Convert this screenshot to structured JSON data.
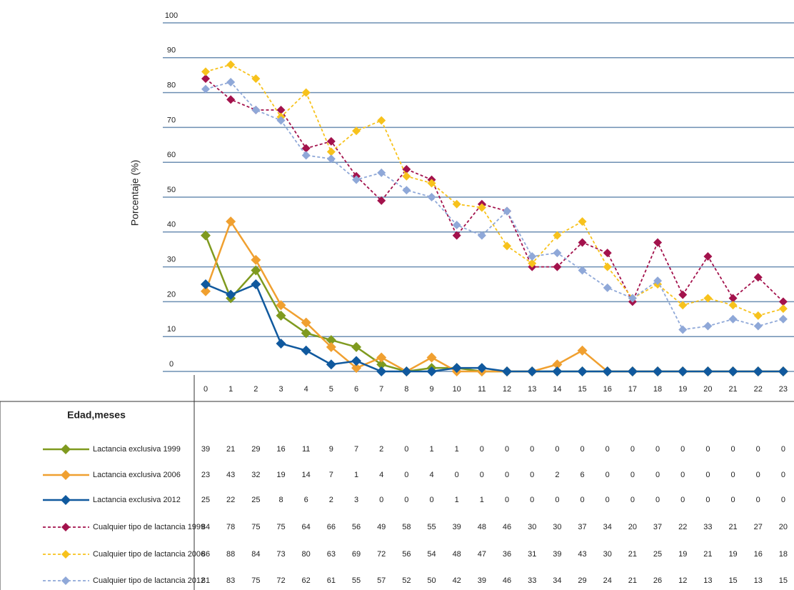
{
  "chart_data": {
    "type": "line",
    "y_label": "Porcentaje (%)",
    "table_header": "Edad,meses",
    "categories": [
      "0",
      "1",
      "2",
      "3",
      "4",
      "5",
      "6",
      "7",
      "8",
      "9",
      "10",
      "11",
      "12",
      "13",
      "14",
      "15",
      "16",
      "17",
      "18",
      "19",
      "20",
      "21",
      "22",
      "23"
    ],
    "ylim": [
      0,
      100
    ],
    "yticks": [
      0,
      10,
      20,
      30,
      40,
      50,
      60,
      70,
      80,
      90,
      100
    ],
    "grid": true,
    "series": [
      {
        "name": "Lactancia exclusiva  1999",
        "color": "#7f9a1f",
        "dashed": false,
        "values": [
          39,
          21,
          29,
          16,
          11,
          9,
          7,
          2,
          0,
          1,
          1,
          0,
          0,
          0,
          0,
          0,
          0,
          0,
          0,
          0,
          0,
          0,
          0,
          0
        ]
      },
      {
        "name": "Lactancia exclusiva  2006",
        "color": "#f0a030",
        "dashed": false,
        "values": [
          23,
          43,
          32,
          19,
          14,
          7,
          1,
          4,
          0,
          4,
          0,
          0,
          0,
          0,
          2,
          6,
          0,
          0,
          0,
          0,
          0,
          0,
          0,
          0
        ]
      },
      {
        "name": "Lactancia exclusiva  2012",
        "color": "#10599e",
        "dashed": false,
        "values": [
          25,
          22,
          25,
          8,
          6,
          2,
          3,
          0,
          0,
          0,
          1,
          1,
          0,
          0,
          0,
          0,
          0,
          0,
          0,
          0,
          0,
          0,
          0,
          0
        ]
      },
      {
        "name": "Cualquier tipo de lactancia 1999",
        "color": "#a3124c",
        "dashed": true,
        "values": [
          84,
          78,
          75,
          75,
          64,
          66,
          56,
          49,
          58,
          55,
          39,
          48,
          46,
          30,
          30,
          37,
          34,
          20,
          37,
          22,
          33,
          21,
          27,
          20
        ]
      },
      {
        "name": "Cualquier tipo de lactancia 2006",
        "color": "#f7c21c",
        "dashed": true,
        "values": [
          86,
          88,
          84,
          73,
          80,
          63,
          69,
          72,
          56,
          54,
          48,
          47,
          36,
          31,
          39,
          43,
          30,
          21,
          25,
          19,
          21,
          19,
          16,
          18
        ]
      },
      {
        "name": "Cualquier tipo de lactancia 2012",
        "color": "#8fa8d8",
        "dashed": true,
        "values": [
          81,
          83,
          75,
          72,
          62,
          61,
          55,
          57,
          52,
          50,
          42,
          39,
          46,
          33,
          34,
          29,
          24,
          21,
          26,
          12,
          13,
          15,
          13,
          15
        ]
      }
    ]
  }
}
